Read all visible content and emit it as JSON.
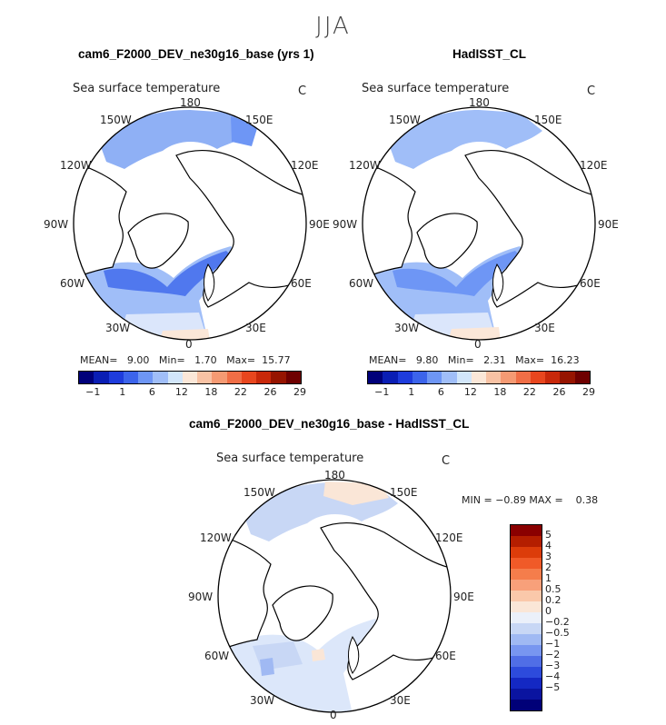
{
  "season": "JJA",
  "panels": [
    {
      "title": "cam6_F2000_DEV_ne30g16_base (yrs 1)",
      "variable": "Sea surface temperature",
      "units": "C",
      "stats": {
        "mean_label": "MEAN=",
        "mean": "9.00",
        "min_label": "Min=",
        "min": "1.70",
        "max_label": "Max=",
        "max": "15.77"
      }
    },
    {
      "title": "HadISST_CL",
      "variable": "Sea surface temperature",
      "units": "C",
      "stats": {
        "mean_label": "MEAN=",
        "mean": "9.80",
        "min_label": "Min=",
        "min": "2.31",
        "max_label": "Max=",
        "max": "16.23"
      }
    },
    {
      "title": "cam6_F2000_DEV_ne30g16_base - HadISST_CL",
      "variable": "Sea surface temperature",
      "units": "C",
      "stats": {
        "min_label": "MIN =",
        "min": "−0.89",
        "max_label": "MAX =",
        "max": "0.38"
      }
    }
  ],
  "longitude_labels": [
    "180",
    "150E",
    "120E",
    "90E",
    "60E",
    "30E",
    "0",
    "30W",
    "60W",
    "90W",
    "120W",
    "150W"
  ],
  "colorbar_abs": {
    "colors": [
      "#00007a",
      "#0a1eb4",
      "#1e3cdc",
      "#3c64eb",
      "#6e96f5",
      "#a0bef8",
      "#d2e6fa",
      "#fbe7d8",
      "#f8c2a4",
      "#f59a73",
      "#f06e46",
      "#e8461e",
      "#c8280a",
      "#961400",
      "#6e0000"
    ],
    "tick_labels": [
      "−1",
      "1",
      "6",
      "12",
      "18",
      "22",
      "26",
      "29"
    ]
  },
  "colorbar_diff": {
    "colors": [
      "#8a0000",
      "#b41e00",
      "#dc3c0a",
      "#f05a28",
      "#f57d4b",
      "#f8a07a",
      "#fac8aa",
      "#fae6d7",
      "#ebf0fa",
      "#c8d7f5",
      "#a0b9f3",
      "#7896f0",
      "#506ee6",
      "#2d4bdc",
      "#1428c3",
      "#0a14a0",
      "#000078"
    ],
    "tick_labels": [
      "5",
      "4",
      "3",
      "2",
      "1",
      "0.5",
      "0.2",
      "0",
      "−0.2",
      "−0.5",
      "−1",
      "−2",
      "−3",
      "−4",
      "−5"
    ]
  }
}
